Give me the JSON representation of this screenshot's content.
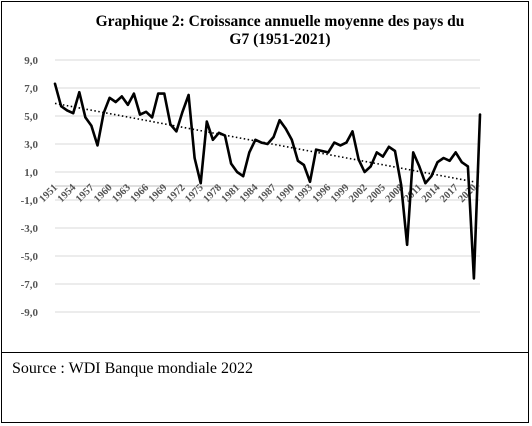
{
  "title": "Graphique 2: Croissance annuelle moyenne des pays du G7 (1951-2021)",
  "source": "Source : WDI Banque mondiale 2022",
  "colors": {
    "series": "#000000",
    "trend": "#000000",
    "grid": "#d9d9d9",
    "axis": "#bfbfbf",
    "tick_text": "#555555"
  },
  "chart_data": {
    "type": "line",
    "title": "Graphique 2: Croissance annuelle moyenne des pays du G7 (1951-2021)",
    "xlabel": "",
    "ylabel": "",
    "ylim": [
      -9,
      9
    ],
    "grid": "horizontal",
    "y_ticks": [
      9,
      7,
      5,
      3,
      1,
      -1,
      -3,
      -5,
      -7,
      -9
    ],
    "y_tick_labels": [
      "9,0",
      "7,0",
      "5,0",
      "3,0",
      "1,0",
      "-1,0",
      "-3,0",
      "-5,0",
      "-7,0",
      "-9,0"
    ],
    "x_tick_labels": [
      "1951",
      "1954",
      "1957",
      "1960",
      "1963",
      "1966",
      "1969",
      "1972",
      "1975",
      "1978",
      "1981",
      "1984",
      "1987",
      "1990",
      "1993",
      "1996",
      "1999",
      "2002",
      "2005",
      "2008",
      "2011",
      "2014",
      "2017",
      "2020"
    ],
    "x_range": [
      1951,
      2021
    ],
    "series": [
      {
        "values": [
          [
            1951,
            7.3
          ],
          [
            1952,
            5.7
          ],
          [
            1953,
            5.4
          ],
          [
            1954,
            5.2
          ],
          [
            1955,
            6.7
          ],
          [
            1956,
            4.9
          ],
          [
            1957,
            4.3
          ],
          [
            1958,
            2.9
          ],
          [
            1959,
            5.2
          ],
          [
            1960,
            6.3
          ],
          [
            1961,
            6.0
          ],
          [
            1962,
            6.4
          ],
          [
            1963,
            5.8
          ],
          [
            1964,
            6.6
          ],
          [
            1965,
            5.1
          ],
          [
            1966,
            5.3
          ],
          [
            1967,
            4.9
          ],
          [
            1968,
            6.6
          ],
          [
            1969,
            6.6
          ],
          [
            1970,
            4.4
          ],
          [
            1971,
            3.9
          ],
          [
            1972,
            5.3
          ],
          [
            1973,
            6.5
          ],
          [
            1974,
            2.0
          ],
          [
            1975,
            0.2
          ],
          [
            1976,
            4.6
          ],
          [
            1977,
            3.3
          ],
          [
            1978,
            3.8
          ],
          [
            1979,
            3.6
          ],
          [
            1980,
            1.6
          ],
          [
            1981,
            1.0
          ],
          [
            1982,
            0.7
          ],
          [
            1983,
            2.4
          ],
          [
            1984,
            3.3
          ],
          [
            1985,
            3.1
          ],
          [
            1986,
            3.0
          ],
          [
            1987,
            3.5
          ],
          [
            1988,
            4.7
          ],
          [
            1989,
            4.1
          ],
          [
            1990,
            3.3
          ],
          [
            1991,
            1.8
          ],
          [
            1992,
            1.5
          ],
          [
            1993,
            0.3
          ],
          [
            1994,
            2.6
          ],
          [
            1995,
            2.5
          ],
          [
            1996,
            2.4
          ],
          [
            1997,
            3.1
          ],
          [
            1998,
            2.9
          ],
          [
            1999,
            3.1
          ],
          [
            2000,
            3.9
          ],
          [
            2001,
            1.9
          ],
          [
            2002,
            1.0
          ],
          [
            2003,
            1.4
          ],
          [
            2004,
            2.4
          ],
          [
            2005,
            2.1
          ],
          [
            2006,
            2.8
          ],
          [
            2007,
            2.5
          ],
          [
            2008,
            0.1
          ],
          [
            2009,
            -4.2
          ],
          [
            2010,
            2.4
          ],
          [
            2011,
            1.4
          ],
          [
            2012,
            0.2
          ],
          [
            2013,
            0.7
          ],
          [
            2014,
            1.7
          ],
          [
            2015,
            2.0
          ],
          [
            2016,
            1.8
          ],
          [
            2017,
            2.4
          ],
          [
            2018,
            1.7
          ],
          [
            2019,
            1.4
          ],
          [
            2020,
            -6.6
          ],
          [
            2021,
            5.1
          ]
        ]
      }
    ],
    "trendline": {
      "style": "dotted",
      "type": "linear",
      "from": [
        1951,
        5.9
      ],
      "to": [
        2020,
        0.3
      ]
    }
  }
}
